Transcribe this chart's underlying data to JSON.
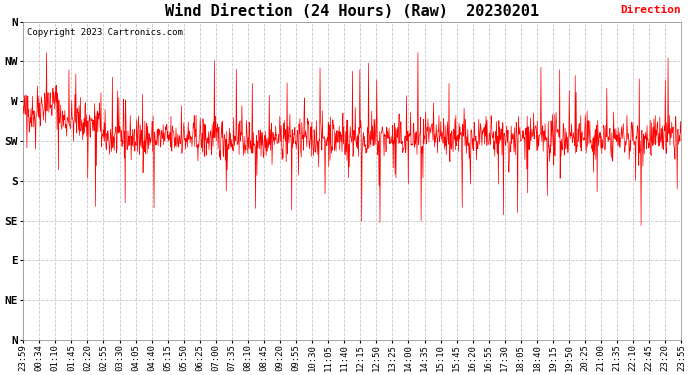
{
  "title": "Wind Direction (24 Hours) (Raw)  20230201",
  "copyright_text": "Copyright 2023 Cartronics.com",
  "legend_label": "Direction",
  "legend_color": "#ff0000",
  "line_color": "#ff0000",
  "background_color": "#ffffff",
  "grid_color": "#c8c8c8",
  "title_fontsize": 11,
  "ytick_labels": [
    "N",
    "NW",
    "W",
    "SW",
    "S",
    "SE",
    "E",
    "NE",
    "N"
  ],
  "ytick_values": [
    360,
    315,
    270,
    225,
    180,
    135,
    90,
    45,
    0
  ],
  "ylim": [
    0,
    360
  ],
  "num_points": 1440,
  "seed": 42,
  "x_labels": [
    "23:59",
    "00:34",
    "01:10",
    "01:45",
    "02:20",
    "02:55",
    "03:30",
    "04:05",
    "04:40",
    "05:15",
    "05:50",
    "06:25",
    "07:00",
    "07:35",
    "08:10",
    "08:45",
    "09:20",
    "09:55",
    "10:30",
    "11:05",
    "11:40",
    "12:15",
    "12:50",
    "13:25",
    "14:00",
    "14:35",
    "15:10",
    "15:45",
    "16:20",
    "16:55",
    "17:30",
    "18:05",
    "18:40",
    "19:15",
    "19:50",
    "20:25",
    "21:00",
    "21:35",
    "22:10",
    "22:45",
    "23:20",
    "23:55"
  ],
  "num_xticks": 42
}
